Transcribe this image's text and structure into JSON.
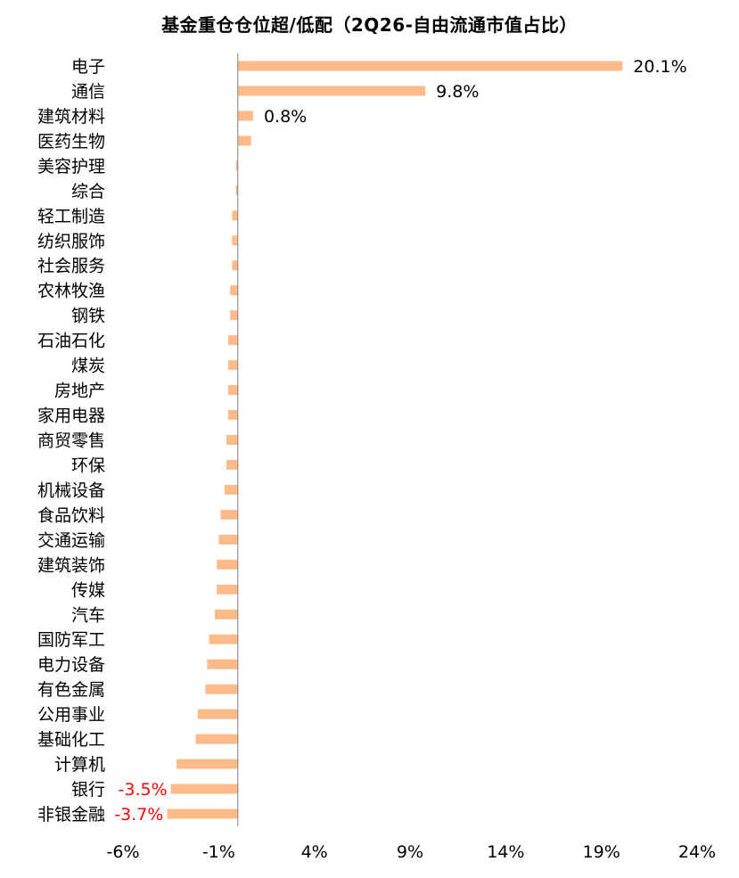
{
  "chart_data": {
    "type": "bar",
    "orientation": "horizontal",
    "title": "基金重仓仓位超/低配（2Q26-自由流通市值占比）",
    "xlabel": "",
    "ylabel": "",
    "xlim": [
      -6,
      24
    ],
    "xticks": [
      -6,
      -1,
      4,
      9,
      14,
      19,
      24
    ],
    "xtick_labels": [
      "-6%",
      "-1%",
      "4%",
      "9%",
      "14%",
      "19%",
      "24%"
    ],
    "bar_color": "#FFBA8A",
    "grid": false,
    "legend": "none",
    "categories": [
      "电子",
      "通信",
      "建筑材料",
      "医药生物",
      "美容护理",
      "综合",
      "轻工制造",
      "纺织服饰",
      "社会服务",
      "农林牧渔",
      "钢铁",
      "石油石化",
      "煤炭",
      "房地产",
      "家用电器",
      "商贸零售",
      "环保",
      "机械设备",
      "食品饮料",
      "交通运输",
      "建筑装饰",
      "传媒",
      "汽车",
      "国防军工",
      "电力设备",
      "有色金属",
      "公用事业",
      "基础化工",
      "计算机",
      "银行",
      "非银金融"
    ],
    "values": [
      20.1,
      9.8,
      0.8,
      0.7,
      -0.1,
      -0.1,
      -0.3,
      -0.3,
      -0.3,
      -0.4,
      -0.4,
      -0.5,
      -0.5,
      -0.5,
      -0.5,
      -0.6,
      -0.6,
      -0.7,
      -0.9,
      -1.0,
      -1.1,
      -1.1,
      -1.2,
      -1.5,
      -1.6,
      -1.7,
      -2.1,
      -2.2,
      -3.2,
      -3.5,
      -3.7
    ],
    "data_labels": [
      {
        "index": 0,
        "text": "20.1%",
        "color": "#000000"
      },
      {
        "index": 1,
        "text": "9.8%",
        "color": "#000000"
      },
      {
        "index": 2,
        "text": "0.8%",
        "color": "#000000"
      },
      {
        "index": 29,
        "text": "-3.5%",
        "color": "#FF0000"
      },
      {
        "index": 30,
        "text": "-3.7%",
        "color": "#FF0000"
      }
    ]
  }
}
